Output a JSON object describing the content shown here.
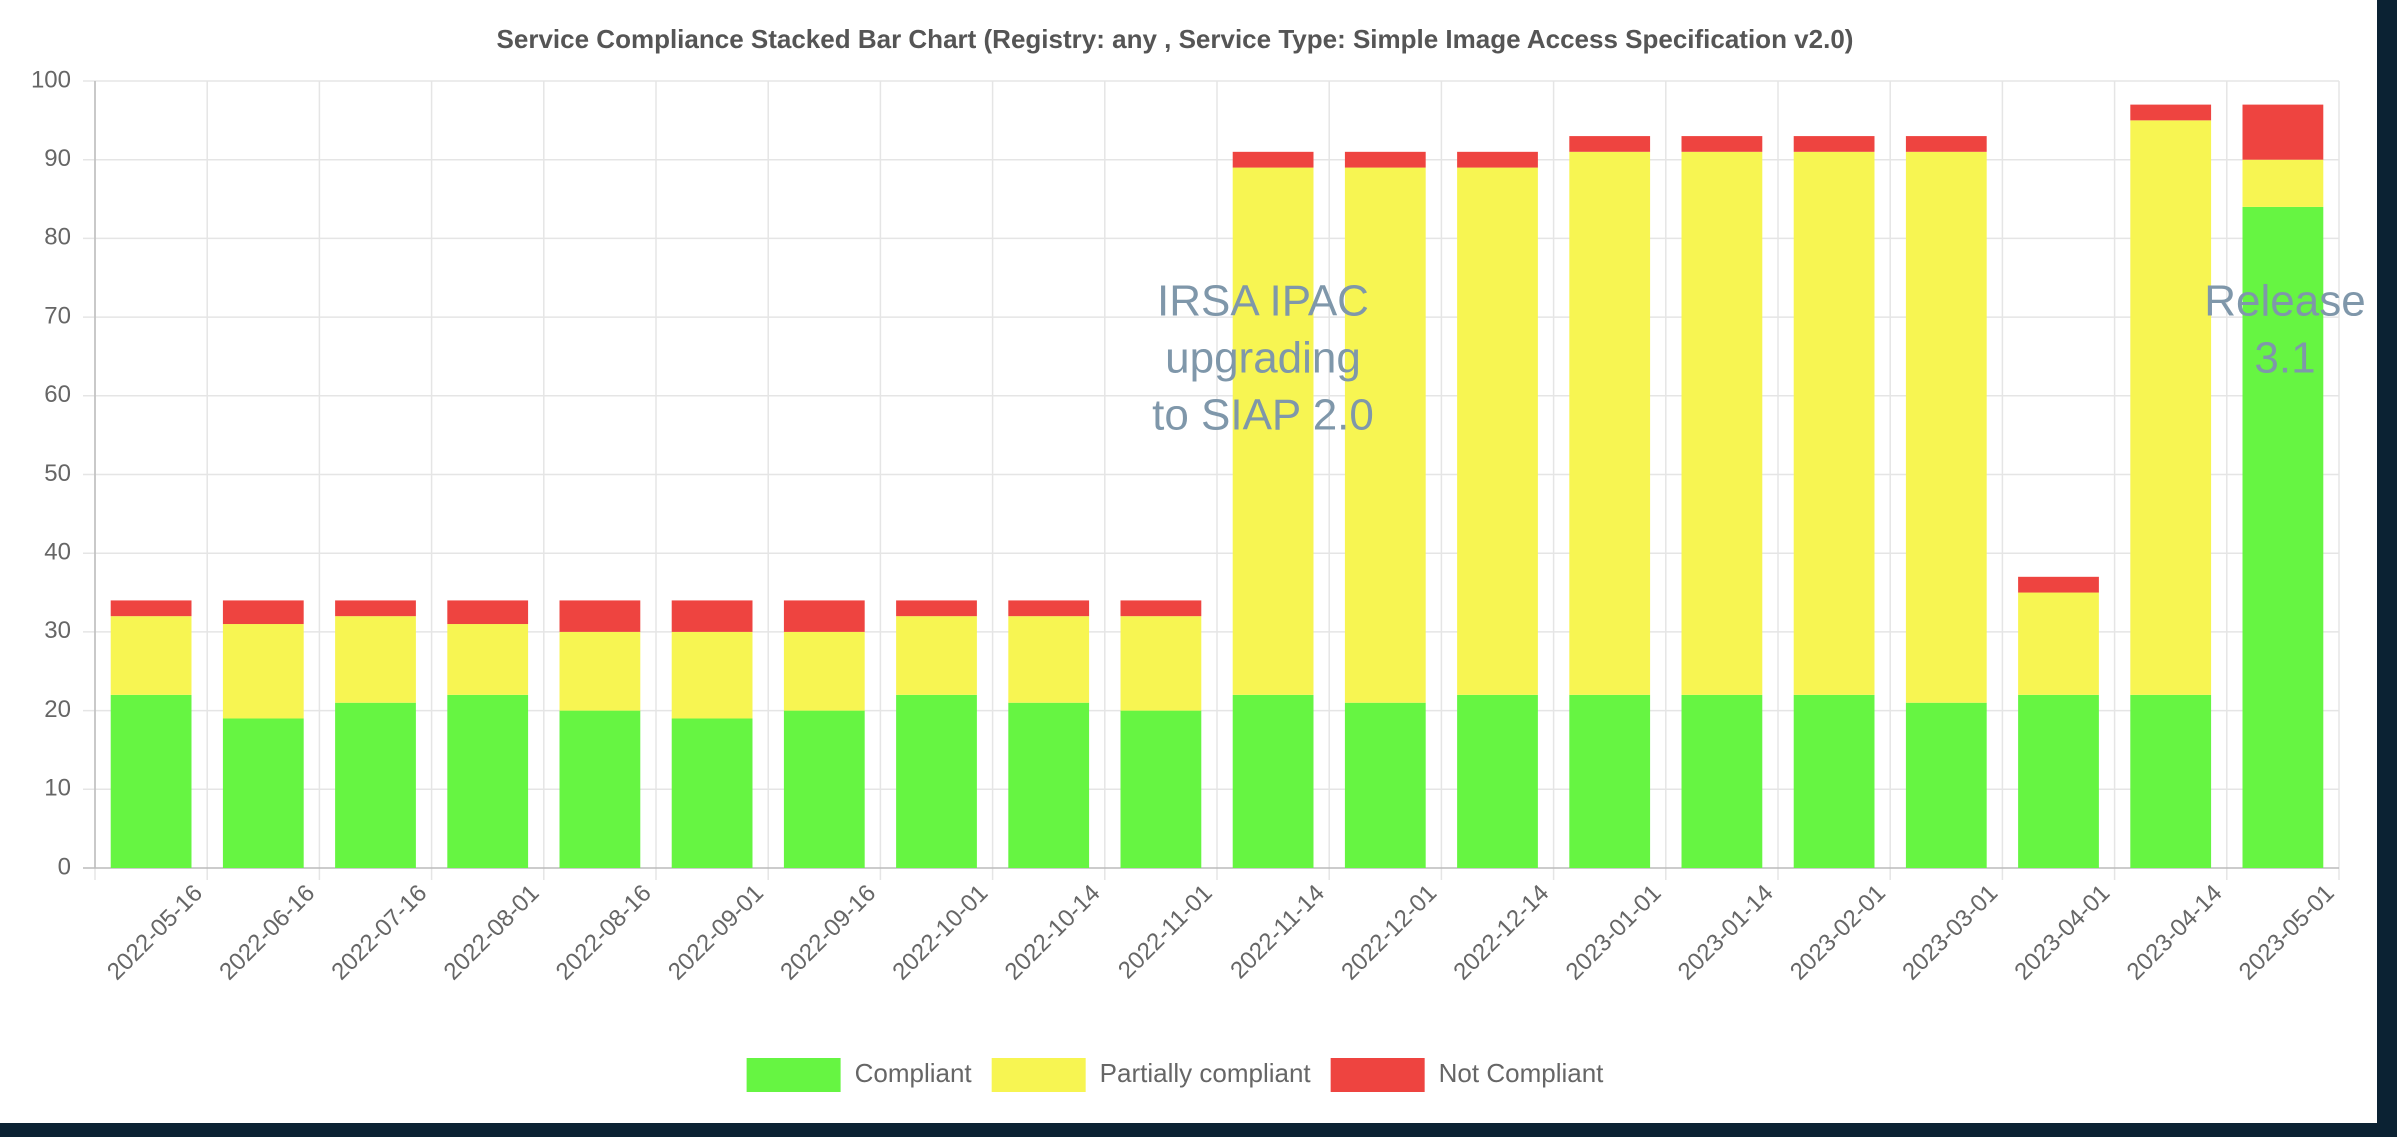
{
  "chart_data": {
    "type": "stacked_bar",
    "title": "Service Compliance Stacked Bar Chart (Registry: any , Service Type: Simple Image Access Specification v2.0)",
    "categories": [
      "2022-05-16",
      "2022-06-16",
      "2022-07-16",
      "2022-08-01",
      "2022-08-16",
      "2022-09-01",
      "2022-09-16",
      "2022-10-01",
      "2022-10-14",
      "2022-11-01",
      "2022-11-14",
      "2022-12-01",
      "2022-12-14",
      "2023-01-01",
      "2023-01-14",
      "2023-02-01",
      "2023-03-01",
      "2023-04-01",
      "2023-04-14",
      "2023-05-01"
    ],
    "series": [
      {
        "name": "Compliant",
        "color": "#66f542",
        "values": [
          22,
          19,
          21,
          22,
          20,
          19,
          20,
          22,
          21,
          20,
          22,
          21,
          22,
          22,
          22,
          22,
          21,
          22,
          22,
          84
        ]
      },
      {
        "name": "Partially compliant",
        "color": "#f7f552",
        "values": [
          10,
          12,
          11,
          9,
          10,
          11,
          10,
          10,
          11,
          12,
          67,
          68,
          67,
          69,
          69,
          69,
          70,
          13,
          73,
          6
        ]
      },
      {
        "name": "Not Compliant",
        "color": "#ee4440",
        "values": [
          2,
          3,
          2,
          3,
          4,
          4,
          4,
          2,
          2,
          2,
          2,
          2,
          2,
          2,
          2,
          2,
          2,
          2,
          2,
          7
        ]
      }
    ],
    "ylim": [
      0,
      100
    ],
    "yticks": [
      0,
      10,
      20,
      30,
      40,
      50,
      60,
      70,
      80,
      90,
      100
    ],
    "grid": true,
    "annotations": [
      {
        "lines": [
          "IRSA IPAC",
          "upgrading",
          "to SIAP 2.0"
        ]
      },
      {
        "lines": [
          "Release",
          "3.1"
        ]
      }
    ]
  }
}
